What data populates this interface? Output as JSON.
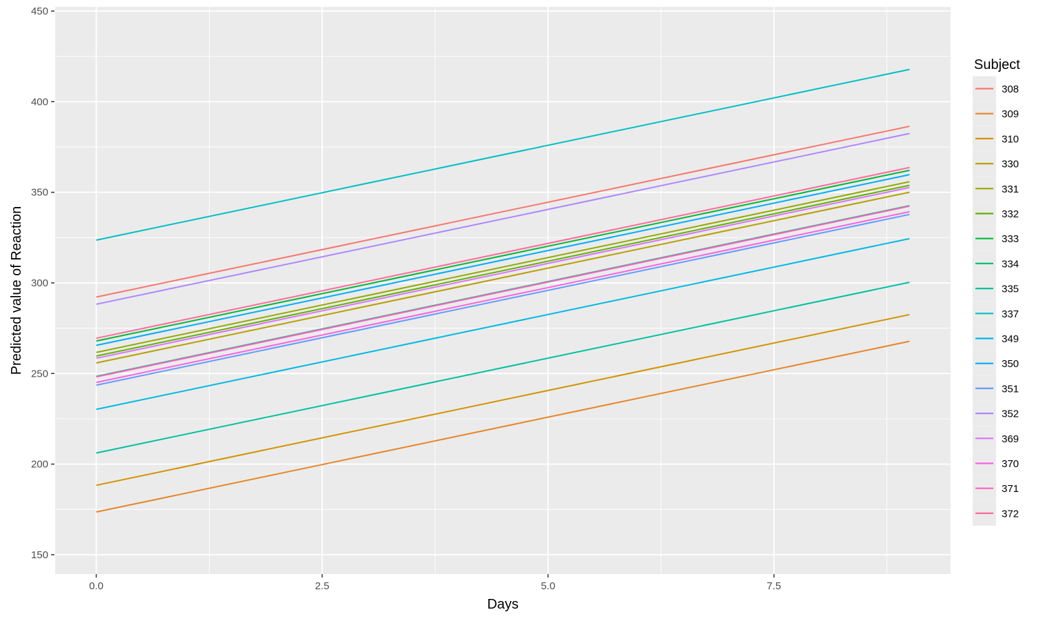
{
  "figure": {
    "background": "#FFFFFF",
    "panel_background": "#EBEBEB",
    "grid_color": "#FFFFFF",
    "tick_mark_color": "#333333",
    "tick_label_color": "#4D4D4D",
    "axis_title_color": "#000000",
    "legend_key_background": "#EBEBEB"
  },
  "chart_data": {
    "type": "line",
    "title": "",
    "xlabel": "Days",
    "ylabel": "Predicted value of Reaction",
    "legend_title": "Subject",
    "legend_position": "right",
    "grid": true,
    "xlim": [
      -0.4545,
      9.4545
    ],
    "ylim": [
      139.3,
      452.3
    ],
    "x_ticks": [
      0.0,
      2.5,
      5.0,
      7.5
    ],
    "x_tick_labels": [
      "0.0",
      "2.5",
      "5.0",
      "7.5"
    ],
    "x_minor_ticks": [
      1.25,
      3.75,
      6.25,
      8.75
    ],
    "y_ticks": [
      150,
      200,
      250,
      300,
      350,
      400,
      450
    ],
    "y_tick_labels": [
      "150",
      "200",
      "250",
      "300",
      "350",
      "400",
      "450"
    ],
    "y_minor_ticks": [
      175,
      225,
      275,
      325,
      375,
      425
    ],
    "x": [
      0,
      9
    ],
    "slope_per_day": 10.467,
    "series": [
      {
        "name": "308",
        "color": "#F8766D",
        "values": [
          292.19,
          386.4
        ]
      },
      {
        "name": "309",
        "color": "#E88526",
        "values": [
          173.56,
          267.76
        ]
      },
      {
        "name": "310",
        "color": "#D39200",
        "values": [
          188.3,
          282.5
        ]
      },
      {
        "name": "330",
        "color": "#B79F00",
        "values": [
          255.81,
          350.02
        ]
      },
      {
        "name": "331",
        "color": "#93AA00",
        "values": [
          261.62,
          355.83
        ]
      },
      {
        "name": "332",
        "color": "#5EB300",
        "values": [
          259.63,
          353.83
        ]
      },
      {
        "name": "333",
        "color": "#00BA38",
        "values": [
          267.91,
          362.11
        ]
      },
      {
        "name": "334",
        "color": "#00BF74",
        "values": [
          248.41,
          342.61
        ]
      },
      {
        "name": "335",
        "color": "#00C19F",
        "values": [
          206.12,
          300.33
        ]
      },
      {
        "name": "337",
        "color": "#00BFC4",
        "values": [
          323.59,
          417.79
        ]
      },
      {
        "name": "349",
        "color": "#00B9E3",
        "values": [
          230.21,
          324.41
        ]
      },
      {
        "name": "350",
        "color": "#00ADFA",
        "values": [
          265.52,
          359.72
        ]
      },
      {
        "name": "351",
        "color": "#619CFF",
        "values": [
          243.54,
          337.75
        ]
      },
      {
        "name": "352",
        "color": "#AE87FF",
        "values": [
          288.21,
          382.42
        ]
      },
      {
        "name": "369",
        "color": "#DB72FB",
        "values": [
          258.41,
          352.62
        ]
      },
      {
        "name": "370",
        "color": "#F564E3",
        "values": [
          245.06,
          339.27
        ]
      },
      {
        "name": "371",
        "color": "#FF61C3",
        "values": [
          248.12,
          342.32
        ]
      },
      {
        "name": "372",
        "color": "#FF699C",
        "values": [
          269.46,
          363.67
        ]
      }
    ]
  }
}
